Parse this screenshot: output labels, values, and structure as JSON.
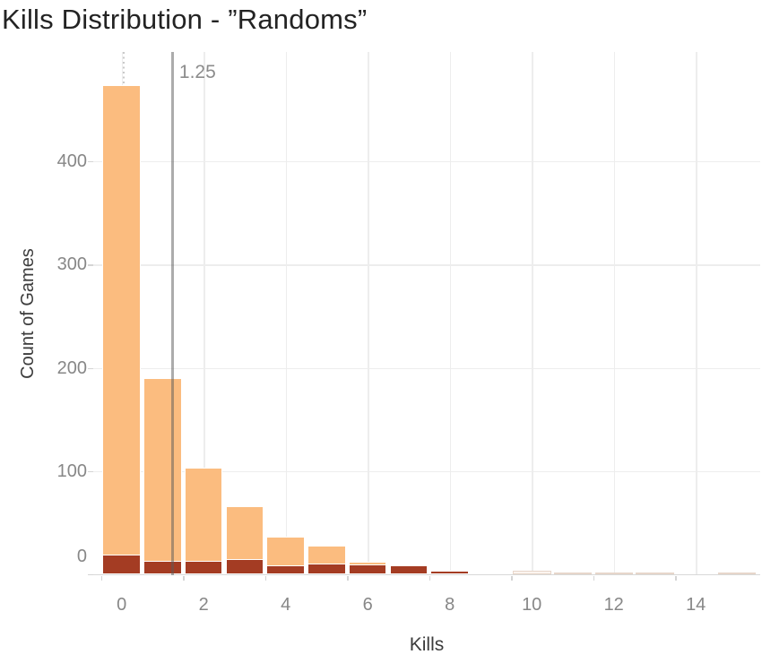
{
  "chart_data": {
    "type": "bar",
    "title": "Kills Distribution - ”Randoms”",
    "xlabel": "Kills",
    "ylabel": "Count of Games",
    "x_tick_labels": [
      "0",
      "2",
      "4",
      "6",
      "8",
      "10",
      "12",
      "14"
    ],
    "x_tick_values": [
      0,
      2,
      4,
      6,
      8,
      10,
      12,
      14
    ],
    "y_tick_labels": [
      "0",
      "100",
      "200",
      "300",
      "400"
    ],
    "y_tick_values": [
      0,
      100,
      200,
      300,
      400
    ],
    "xlim": [
      -0.7,
      15.6
    ],
    "ylim": [
      0,
      505
    ],
    "grid": true,
    "legend": "none",
    "bins": [
      0,
      1,
      2,
      3,
      4,
      5,
      6,
      7,
      8,
      9,
      10,
      11,
      12,
      13,
      14,
      15
    ],
    "series": [
      {
        "name": "series-light-orange",
        "color": "#FBBC7F",
        "border_color": "#FFFFFF",
        "values": [
          474,
          190,
          103,
          66,
          37,
          28,
          12,
          9,
          4,
          0,
          0,
          0,
          0,
          0,
          0,
          0
        ]
      },
      {
        "name": "series-dark-red",
        "color": "#A43C23",
        "border_color": "#FFFFFF",
        "values": [
          19,
          13,
          13,
          15,
          9,
          11,
          10,
          9,
          4,
          0,
          0,
          0,
          0,
          0,
          0,
          0
        ]
      },
      {
        "name": "series-faint",
        "color": "#FBF4EF",
        "border_color": "#E7D6CA",
        "values": [
          0,
          0,
          0,
          0,
          0,
          0,
          0,
          0,
          0,
          0,
          4,
          2,
          2,
          2,
          0,
          2
        ]
      }
    ],
    "reference_lines": [
      {
        "value": 1.25,
        "label": "1.25",
        "style": "solid",
        "color": "#8C8C8C"
      },
      {
        "value": 0.05,
        "label": "",
        "style": "dotted",
        "color": "#C9C9C9"
      }
    ],
    "colors": {
      "grid": "#EDEDED",
      "axis_line": "#D8D8D8",
      "tick_label": "#878787",
      "axis_title": "#3B3B3B",
      "title": "#232323"
    }
  }
}
